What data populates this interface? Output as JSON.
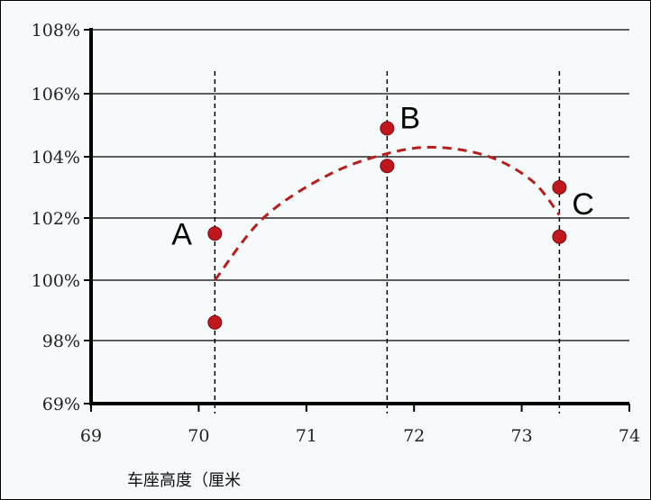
{
  "chart_data": {
    "type": "scatter",
    "title": "",
    "xlabel": "车座高度（厘米",
    "ylabel": "",
    "x_ticks": [
      "69",
      "70",
      "71",
      "72",
      "73",
      "74"
    ],
    "x_range": [
      69,
      74
    ],
    "y_ticks": [
      "69%",
      "98%",
      "100%",
      "102%",
      "104%",
      "106%",
      "108%"
    ],
    "grid": "horizontal",
    "colors": {
      "points": "#c0161d",
      "curve": "#b81c1c",
      "grid": "#000000"
    },
    "groups": [
      {
        "label": "A",
        "x": 70.15,
        "values": [
          101.5,
          98.6
        ]
      },
      {
        "label": "B",
        "x": 71.75,
        "values": [
          104.9,
          103.7
        ]
      },
      {
        "label": "C",
        "x": 73.35,
        "values": [
          103.0,
          101.4
        ]
      }
    ],
    "trend_curve": {
      "style": "dashed",
      "points": [
        [
          70.15,
          100.0
        ],
        [
          70.6,
          102.0
        ],
        [
          71.2,
          103.4
        ],
        [
          71.75,
          104.1
        ],
        [
          72.2,
          104.3
        ],
        [
          72.7,
          104.0
        ],
        [
          73.1,
          103.2
        ],
        [
          73.35,
          102.1
        ]
      ]
    }
  }
}
